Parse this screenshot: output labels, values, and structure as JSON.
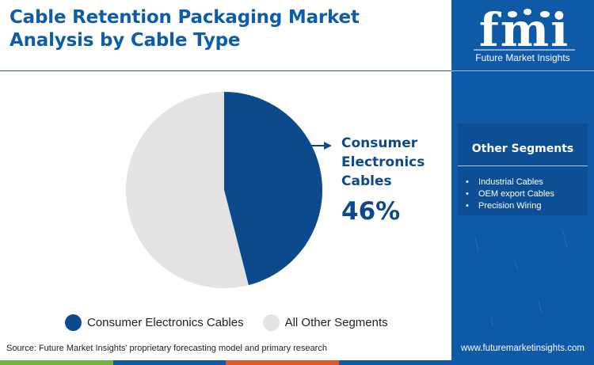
{
  "header": {
    "title_line1": "Cable Retention Packaging Market",
    "title_line2": "Analysis by Cable Type"
  },
  "colors": {
    "brand_blue": "#0e5aa6",
    "primary_slice": "#0d4a8c",
    "other_slice": "#e3e3e3"
  },
  "chart_data": {
    "type": "pie",
    "slices": [
      {
        "label": "Consumer Electronics Cables",
        "value": 46,
        "color": "#0d4a8c"
      },
      {
        "label": "All Other Segments",
        "value": 54,
        "color": "#e3e3e3"
      }
    ],
    "callout": {
      "label_lines": [
        "Consumer",
        "Electronics",
        "Cables"
      ],
      "value": "46%"
    },
    "legend_placement": "bottom"
  },
  "legend": [
    {
      "label": "Consumer Electronics Cables",
      "color": "#0d4a8c"
    },
    {
      "label": "All Other Segments",
      "color": "#e3e3e3"
    }
  ],
  "footer": {
    "source": "Source: Future Market Insights’ proprietary forecasting model and primary research",
    "bar_colors": [
      "#6cb33f",
      "#0e5aa6",
      "#e0572a",
      "#0e5aa6"
    ]
  },
  "sidebar": {
    "logo_text": "fmi",
    "logo_subtitle": "Future Market Insights",
    "segments_title": "Other Segments",
    "segments": [
      "Industrial Cables",
      "OEM export Cables",
      "Precision Wiring"
    ],
    "website": "www.futuremarketinsights.com"
  }
}
